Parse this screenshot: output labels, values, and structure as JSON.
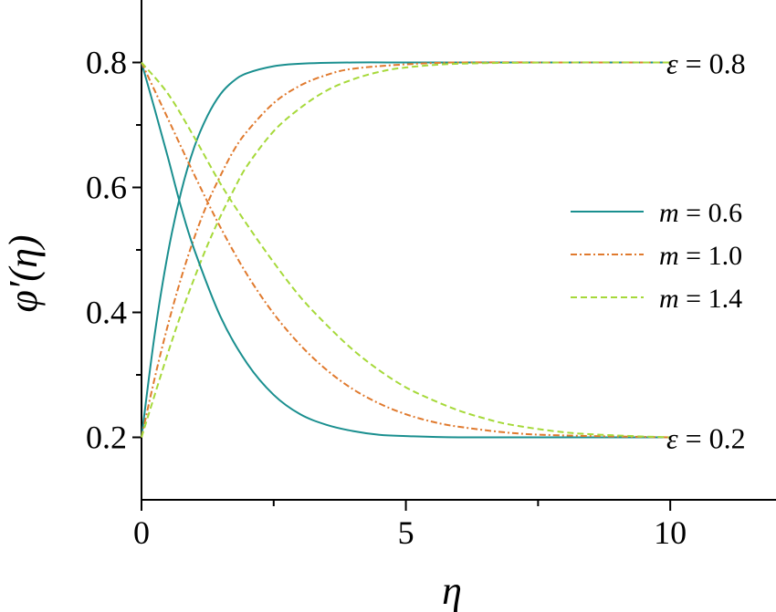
{
  "chart_data": {
    "type": "line",
    "xlabel": "η",
    "ylabel": "φ′(η)",
    "xlim": [
      0,
      12
    ],
    "ylim": [
      0.1,
      0.9
    ],
    "x_ticks": [
      0,
      5,
      10
    ],
    "x_tick_labels": [
      "0",
      "5",
      "10"
    ],
    "x_minor_ticks": [
      2.5,
      7.5
    ],
    "y_ticks": [
      0.2,
      0.4,
      0.6,
      0.8
    ],
    "y_tick_labels": [
      "0.2",
      "0.4",
      "0.6",
      "0.8"
    ],
    "y_minor_ticks": [
      0.3,
      0.5,
      0.7
    ],
    "grid": false,
    "legend_position": "right",
    "legend": [
      {
        "label": "m = 0.6",
        "var": "m",
        "rest": " = 0.6",
        "color": "#1a8f8f",
        "dash": "solid"
      },
      {
        "label": "m = 1.0",
        "var": "m",
        "rest": " = 1.0",
        "color": "#e07a2e",
        "dash": "dashdot"
      },
      {
        "label": "m = 1.4",
        "var": "m",
        "rest": " = 1.4",
        "color": "#a6d93a",
        "dash": "dashed"
      }
    ],
    "annotations": [
      {
        "var": "ε",
        "rest": " = 0.8",
        "at": [
          10.0,
          0.8
        ]
      },
      {
        "var": "ε",
        "rest": " = 0.2",
        "at": [
          10.0,
          0.2
        ]
      }
    ],
    "series": [
      {
        "name": "m = 0.6",
        "group": "ε = 0.8",
        "color": "#1a8f8f",
        "dash": "solid",
        "x": [
          0,
          0.25,
          0.5,
          0.75,
          1.0,
          1.25,
          1.5,
          1.75,
          2.0,
          2.5,
          3.0,
          4.0,
          5.0,
          6.0,
          8.0,
          10.0
        ],
        "y": [
          0.2,
          0.365,
          0.495,
          0.593,
          0.665,
          0.715,
          0.75,
          0.771,
          0.783,
          0.794,
          0.798,
          0.8,
          0.8,
          0.8,
          0.8,
          0.8
        ]
      },
      {
        "name": "m = 1.0",
        "group": "ε = 0.8",
        "color": "#e07a2e",
        "dash": "dashdot",
        "x": [
          0,
          0.25,
          0.5,
          0.75,
          1.0,
          1.25,
          1.5,
          1.75,
          2.0,
          2.5,
          3.0,
          3.5,
          4.0,
          5.0,
          6.0,
          8.0,
          10.0
        ],
        "y": [
          0.2,
          0.295,
          0.38,
          0.455,
          0.52,
          0.575,
          0.62,
          0.66,
          0.69,
          0.735,
          0.763,
          0.78,
          0.79,
          0.797,
          0.8,
          0.8,
          0.8
        ]
      },
      {
        "name": "m = 1.4",
        "group": "ε = 0.8",
        "color": "#a6d93a",
        "dash": "dashed",
        "x": [
          0,
          0.25,
          0.5,
          0.75,
          1.0,
          1.25,
          1.5,
          1.75,
          2.0,
          2.5,
          3.0,
          3.5,
          4.0,
          4.5,
          5.0,
          6.0,
          8.0,
          10.0
        ],
        "y": [
          0.2,
          0.268,
          0.335,
          0.398,
          0.455,
          0.508,
          0.555,
          0.597,
          0.635,
          0.69,
          0.727,
          0.755,
          0.773,
          0.785,
          0.792,
          0.798,
          0.8,
          0.8
        ]
      },
      {
        "name": "m = 0.6",
        "group": "ε = 0.2",
        "color": "#1a8f8f",
        "dash": "solid",
        "x": [
          0,
          0.25,
          0.5,
          0.75,
          1.0,
          1.5,
          2.0,
          2.5,
          3.0,
          3.5,
          4.0,
          4.5,
          5.0,
          6.0,
          8.0,
          10.0
        ],
        "y": [
          0.8,
          0.725,
          0.648,
          0.568,
          0.5,
          0.392,
          0.318,
          0.268,
          0.237,
          0.22,
          0.21,
          0.204,
          0.202,
          0.2,
          0.2,
          0.2
        ]
      },
      {
        "name": "m = 1.0",
        "group": "ε = 0.2",
        "color": "#e07a2e",
        "dash": "dashdot",
        "x": [
          0,
          0.5,
          1.0,
          1.5,
          2.0,
          2.5,
          3.0,
          3.5,
          4.0,
          4.5,
          5.0,
          5.5,
          6.0,
          7.0,
          8.0,
          10.0
        ],
        "y": [
          0.8,
          0.71,
          0.62,
          0.535,
          0.46,
          0.398,
          0.348,
          0.308,
          0.277,
          0.254,
          0.237,
          0.225,
          0.217,
          0.207,
          0.203,
          0.2
        ]
      },
      {
        "name": "m = 1.4",
        "group": "ε = 0.2",
        "color": "#a6d93a",
        "dash": "dashed",
        "x": [
          0,
          0.5,
          1.0,
          1.5,
          2.0,
          2.5,
          3.0,
          3.5,
          4.0,
          4.5,
          5.0,
          5.5,
          6.0,
          6.5,
          7.0,
          8.0,
          9.0,
          10.0
        ],
        "y": [
          0.8,
          0.75,
          0.68,
          0.605,
          0.54,
          0.48,
          0.425,
          0.38,
          0.34,
          0.307,
          0.28,
          0.26,
          0.243,
          0.23,
          0.22,
          0.208,
          0.203,
          0.2
        ]
      }
    ]
  }
}
